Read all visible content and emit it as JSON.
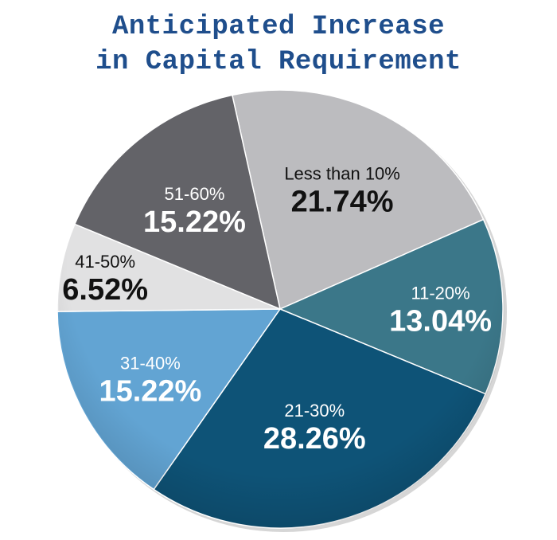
{
  "chart_data": {
    "type": "pie",
    "title_lines": [
      "Anticipated Increase",
      "in Capital Requirement"
    ],
    "slices": [
      {
        "label": "Less than 10%",
        "value": 21.74,
        "value_label": "21.74%",
        "color": "#bcbcbf",
        "text_color": "#111111"
      },
      {
        "label": "11-20%",
        "value": 13.04,
        "value_label": "13.04%",
        "color": "#3b7789",
        "text_color": "#ffffff"
      },
      {
        "label": "21-30%",
        "value": 28.26,
        "value_label": "28.26%",
        "color": "#0e5377",
        "text_color": "#ffffff"
      },
      {
        "label": "31-40%",
        "value": 15.22,
        "value_label": "15.22%",
        "color": "#62a4d3",
        "text_color": "#ffffff"
      },
      {
        "label": "41-50%",
        "value": 6.52,
        "value_label": "6.52%",
        "color": "#e1e1e2",
        "text_color": "#111111"
      },
      {
        "label": "51-60%",
        "value": 15.22,
        "value_label": "15.22%",
        "color": "#636368",
        "text_color": "#ffffff"
      }
    ],
    "start_angle_deg": -12.4,
    "direction": "clockwise"
  }
}
